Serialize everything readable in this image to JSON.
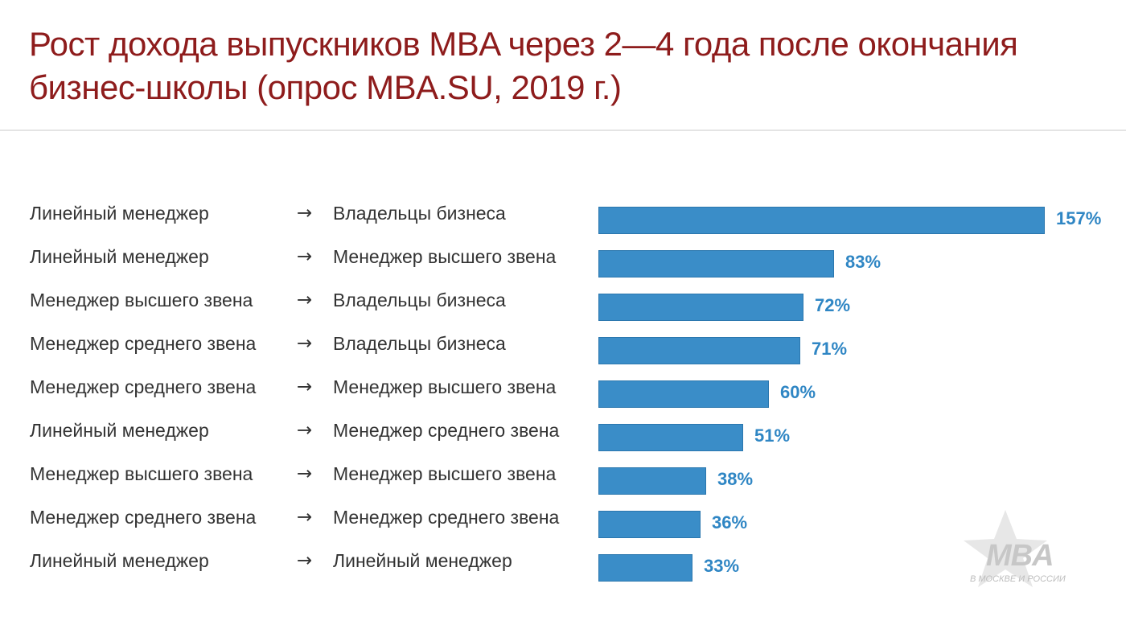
{
  "page": {
    "title": "Рост дохода выпускников MBA через 2—4 года после окончания бизнес-школы (опрос MBA.SU, 2019 г.)"
  },
  "chart_data": {
    "type": "bar",
    "orientation": "horizontal",
    "title": "Рост дохода выпускников MBA через 2—4 года после окончания бизнес-школы (опрос MBA.SU, 2019 г.)",
    "arrow_symbol": "→",
    "value_suffix": "%",
    "categories": [
      {
        "from": "Линейный менеджер",
        "to": "Владельцы бизнеса",
        "label": "157%"
      },
      {
        "from": "Линейный менеджер",
        "to": "Менеджер высшего звена",
        "label": "83%"
      },
      {
        "from": "Менеджер высшего звена",
        "to": "Владельцы бизнеса",
        "label": "72%"
      },
      {
        "from": "Менеджер среднего звена",
        "to": "Владельцы бизнеса",
        "label": "71%"
      },
      {
        "from": "Менеджер среднего звена",
        "to": "Менеджер высшего звена",
        "label": "60%"
      },
      {
        "from": "Линейный менеджер",
        "to": "Менеджер среднего звена",
        "label": "51%"
      },
      {
        "from": "Менеджер высшего звена",
        "to": "Менеджер высшего звена",
        "label": "38%"
      },
      {
        "from": "Менеджер среднего звена",
        "to": "Менеджер среднего звена",
        "label": "36%"
      },
      {
        "from": "Линейный менеджер",
        "to": "Линейный менеджер",
        "label": "33%"
      }
    ],
    "values": [
      157,
      83,
      72,
      71,
      60,
      51,
      38,
      36,
      33
    ],
    "xlim": [
      0,
      157
    ],
    "grid": false,
    "legend": "none",
    "colors": {
      "bar": "#3a8dc8",
      "bar_border": "#2b77ae",
      "value_label": "#2f86c4",
      "title": "#8e1c1c"
    }
  },
  "watermark": {
    "logo_text": "MBA",
    "subtitle": "В МОСКВЕ И РОССИИ",
    "icon": "star-icon"
  }
}
